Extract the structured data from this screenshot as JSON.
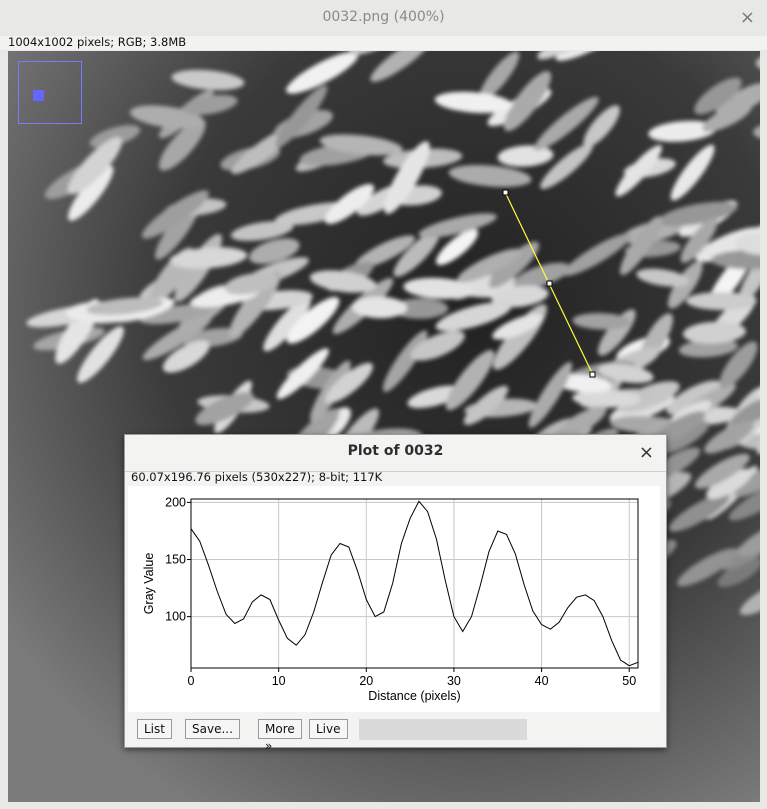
{
  "window": {
    "title": "0032.png (400%)",
    "close_glyph": "×",
    "info": "1004x1002 pixels; RGB; 3.8MB"
  },
  "plot_window": {
    "title": "Plot of 0032",
    "close_glyph": "×",
    "info": "60.07x196.76 pixels (530x227); 8-bit; 117K"
  },
  "buttons": {
    "list": "List",
    "save": "Save...",
    "more": "More »",
    "live": "Live"
  },
  "chart_data": {
    "type": "line",
    "xlabel": "Distance (pixels)",
    "ylabel": "Gray Value",
    "xlim": [
      0,
      51
    ],
    "ylim": [
      55,
      203
    ],
    "xticks": [
      0,
      10,
      20,
      30,
      40,
      50
    ],
    "yticks": [
      100,
      150,
      200
    ],
    "grid": true,
    "x": [
      0,
      1,
      2,
      3,
      4,
      5,
      6,
      7,
      8,
      9,
      10,
      11,
      12,
      13,
      14,
      15,
      16,
      17,
      18,
      19,
      20,
      21,
      22,
      23,
      24,
      25,
      26,
      27,
      28,
      29,
      30,
      31,
      32,
      33,
      34,
      35,
      36,
      37,
      38,
      39,
      40,
      41,
      42,
      43,
      44,
      45,
      46,
      47,
      48,
      49,
      50,
      51
    ],
    "values": [
      177,
      166,
      145,
      122,
      102,
      94,
      98,
      113,
      119,
      115,
      97,
      81,
      75,
      84,
      104,
      130,
      154,
      164,
      161,
      140,
      115,
      100,
      104,
      129,
      164,
      186,
      201,
      192,
      168,
      132,
      100,
      87,
      100,
      127,
      157,
      175,
      172,
      155,
      128,
      105,
      93,
      89,
      95,
      108,
      117,
      119,
      114,
      100,
      79,
      62,
      57,
      60
    ]
  },
  "colors": {
    "selection_line": "#ffff3a",
    "nav_box": "#7a7aff"
  }
}
